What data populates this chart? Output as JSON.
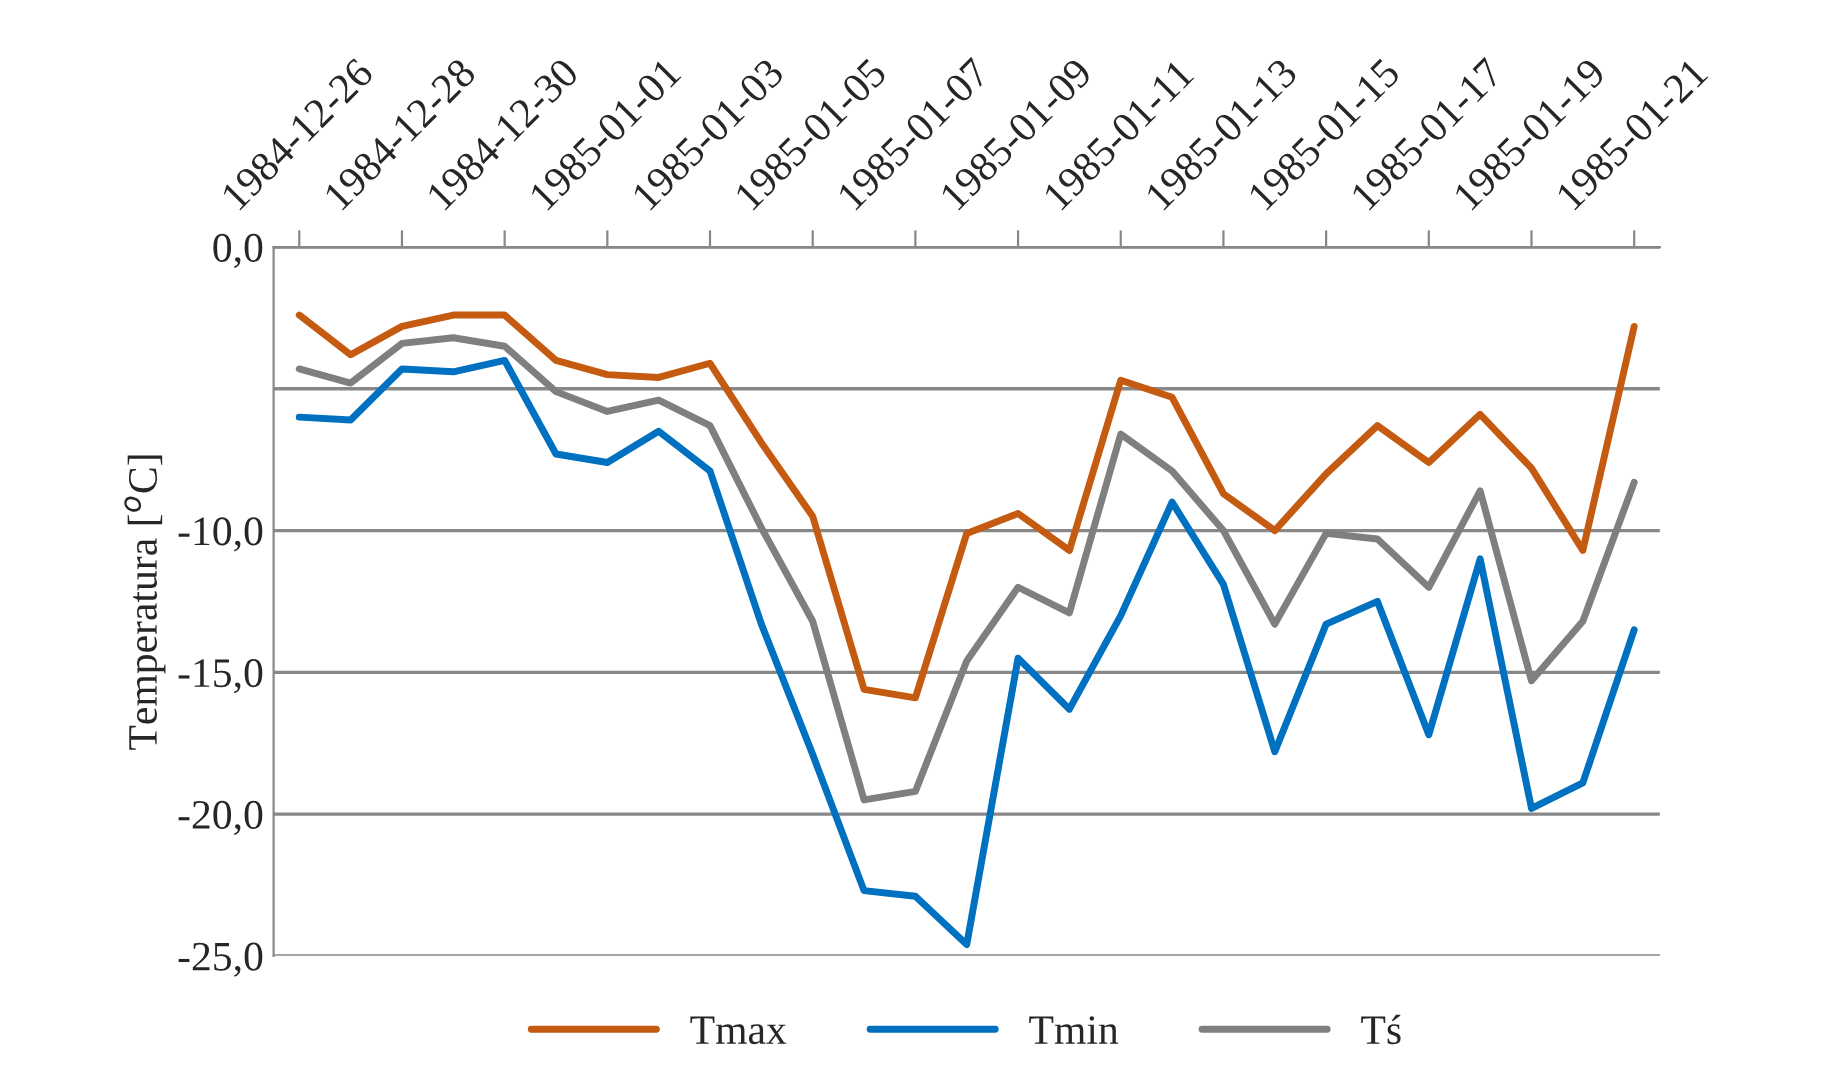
{
  "chart_data": {
    "type": "line",
    "ylabel": "Temperatura [$^{o}$C]",
    "categories": [
      "1984-12-26",
      null,
      "1984-12-28",
      null,
      "1984-12-30",
      null,
      "1985-01-01",
      null,
      "1985-01-03",
      null,
      "1985-01-05",
      null,
      "1985-01-07",
      null,
      "1985-01-09",
      null,
      "1985-01-11",
      null,
      "1985-01-13",
      null,
      "1985-01-15",
      null,
      "1985-01-17",
      null,
      "1985-01-19",
      null,
      "1985-01-21"
    ],
    "series": [
      {
        "name": "Tmax",
        "color": "#c55a11",
        "values": [
          -2.4,
          -3.8,
          -2.8,
          -2.4,
          -2.4,
          -4.0,
          -4.5,
          -4.6,
          -4.1,
          -6.9,
          -9.5,
          -15.6,
          -15.9,
          -10.1,
          -9.4,
          -10.7,
          -4.7,
          -5.3,
          -8.7,
          -10.0,
          -8.0,
          -6.3,
          -7.6,
          -5.9,
          -7.8,
          -10.7,
          -2.8
        ]
      },
      {
        "name": "Tmin",
        "color": "#0070c0",
        "values": [
          -6.0,
          -6.1,
          -4.3,
          -4.4,
          -4.0,
          -7.3,
          -7.6,
          -6.5,
          -7.9,
          -13.3,
          -17.9,
          -22.7,
          -22.9,
          -24.6,
          -14.5,
          -16.3,
          -13.0,
          -9.0,
          -11.9,
          -17.8,
          -13.3,
          -12.5,
          -17.2,
          -11.0,
          -19.8,
          -18.9,
          -13.5
        ]
      },
      {
        "name": "Tś",
        "color": "#7f7f7f",
        "values": [
          -4.3,
          -4.8,
          -3.4,
          -3.2,
          -3.5,
          -5.1,
          -5.8,
          -5.4,
          -6.3,
          -9.9,
          -13.2,
          -19.5,
          -19.2,
          -14.6,
          -12.0,
          -12.9,
          -6.6,
          -7.9,
          -10.0,
          -13.3,
          -10.1,
          -10.3,
          -12.0,
          -8.6,
          -15.3,
          -13.2,
          -8.3
        ]
      }
    ],
    "ylim": [
      -25,
      0
    ],
    "yticks": [
      {
        "value": -25,
        "label": "-25,0"
      },
      {
        "value": -20,
        "label": "-20,0"
      },
      {
        "value": -15,
        "label": "-15,0"
      },
      {
        "value": -10,
        "label": "-10,0"
      },
      {
        "value": -5,
        "label": null
      },
      {
        "value": 0,
        "label": "0,0"
      }
    ],
    "grid": "y",
    "legend": "bottom",
    "marker": "none",
    "line_style": "solid"
  }
}
